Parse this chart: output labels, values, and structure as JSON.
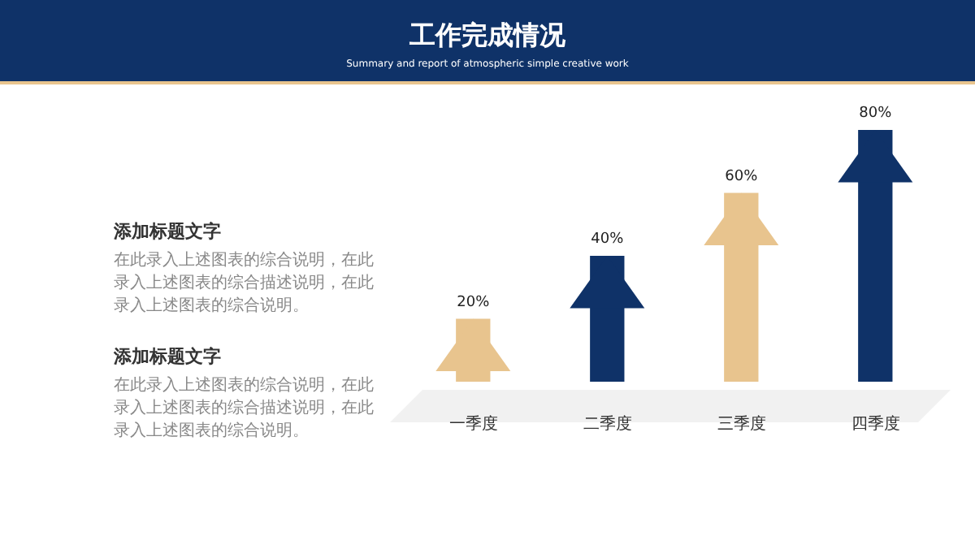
{
  "chart_data": {
    "type": "bar",
    "title": "工作完成情况",
    "subtitle": "Summary and report of atmospheric simple creative work",
    "categories": [
      "一季度",
      "二季度",
      "三季度",
      "四季度"
    ],
    "values": [
      20,
      40,
      60,
      80
    ],
    "value_labels": [
      "20%",
      "40%",
      "60%",
      "80%"
    ],
    "colors": [
      "#e8c48e",
      "#0f3268",
      "#e8c48e",
      "#0f3268"
    ],
    "annotations": [
      "添加标题文字",
      "在此录入上述图表的综合说明，在此录入上述图表的综合描述说明，在此录入上述图表的综合说明。",
      "添加标题文字",
      "在此录入上述图表的综合说明，在此录入上述图表的综合描述说明，在此录入上述图表的综合说明。"
    ]
  }
}
